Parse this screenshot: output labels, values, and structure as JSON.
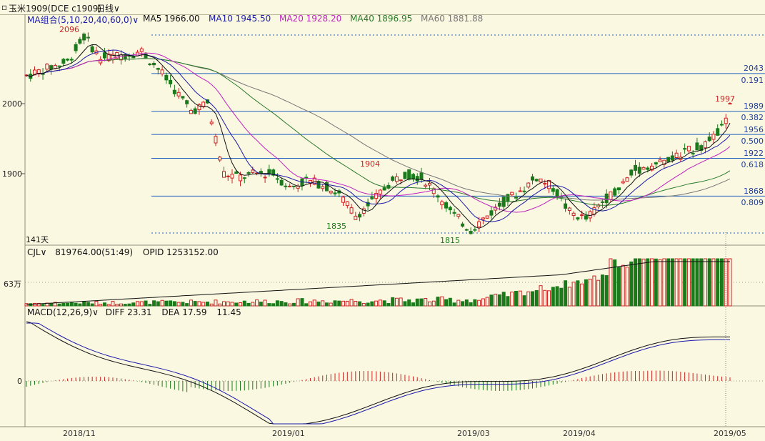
{
  "colors": {
    "background": "#fbf8e2",
    "up": "#cc2222",
    "down": "#1b7a1b",
    "ma5": "#111111",
    "ma10": "#1a1aa8",
    "ma20": "#c020c0",
    "ma40": "#2a7a2a",
    "ma60": "#777777",
    "fib": "#2060c0"
  },
  "titlebar": {
    "symbol": "玉米1909(DCE c1909)",
    "period": "日线"
  },
  "ma_legend": {
    "group": "MA组合(5,10,20,40,60,0)",
    "ma5": "MA5 1966.00",
    "ma10": "MA10 1945.50",
    "ma20": "MA20 1928.20",
    "ma40": "MA40 1896.95",
    "ma60": "MA60 1881.88"
  },
  "price_axis": {
    "ticks": [
      "2000",
      "1900"
    ]
  },
  "fib_levels": [
    {
      "price": "2043",
      "ratio": "0.191"
    },
    {
      "price": "1989",
      "ratio": "0.382"
    },
    {
      "price": "1956",
      "ratio": "0.500"
    },
    {
      "price": "1922",
      "ratio": "0.618"
    },
    {
      "price": "1868",
      "ratio": "0.809"
    }
  ],
  "highlights": {
    "high1": "2096",
    "high2": "1904",
    "high3": "1997",
    "low1": "1835",
    "low2": "1815"
  },
  "days_label": "141天",
  "volume_panel": {
    "legend_name": "CJL",
    "values": "819764.00(51:49)",
    "opid": "OPID 1253152.00",
    "axis_tick": "63万"
  },
  "macd_panel": {
    "legend_name": "MACD(12,26,9)",
    "diff": "DIFF 23.31",
    "dea": "DEA 17.59",
    "macd": "11.45",
    "axis_tick": "0"
  },
  "dates": [
    "2018/11",
    "2019/01",
    "2019/03",
    "2019/04",
    "2019/05"
  ]
}
